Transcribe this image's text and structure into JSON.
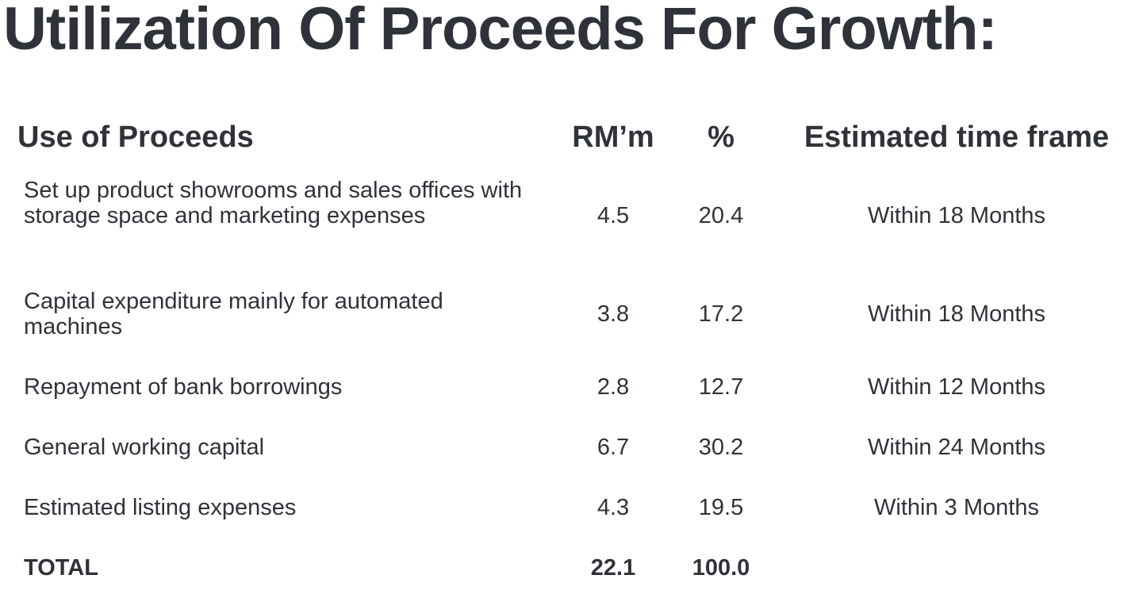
{
  "title": "Utilization Of Proceeds For Growth:",
  "table": {
    "headers": {
      "use": "Use of Proceeds",
      "rm": "RM’m",
      "pct": "%",
      "time": "Estimated time frame"
    },
    "rows": [
      {
        "use": "Set up product showrooms and sales offices with storage space and marketing expenses",
        "rm": "4.5",
        "pct": "20.4",
        "time": "Within 18 Months"
      },
      {
        "use": "Capital expenditure mainly for automated machines",
        "rm": "3.8",
        "pct": "17.2",
        "time": "Within 18 Months"
      },
      {
        "use": "Repayment of bank borrowings",
        "rm": "2.8",
        "pct": "12.7",
        "time": "Within 12 Months"
      },
      {
        "use": "General working capital",
        "rm": "6.7",
        "pct": "30.2",
        "time": "Within 24 Months"
      },
      {
        "use": "Estimated listing expenses",
        "rm": "4.3",
        "pct": "19.5",
        "time": "Within 3 Months"
      }
    ],
    "total": {
      "label": "TOTAL",
      "rm": "22.1",
      "pct": "100.0",
      "time": ""
    }
  }
}
